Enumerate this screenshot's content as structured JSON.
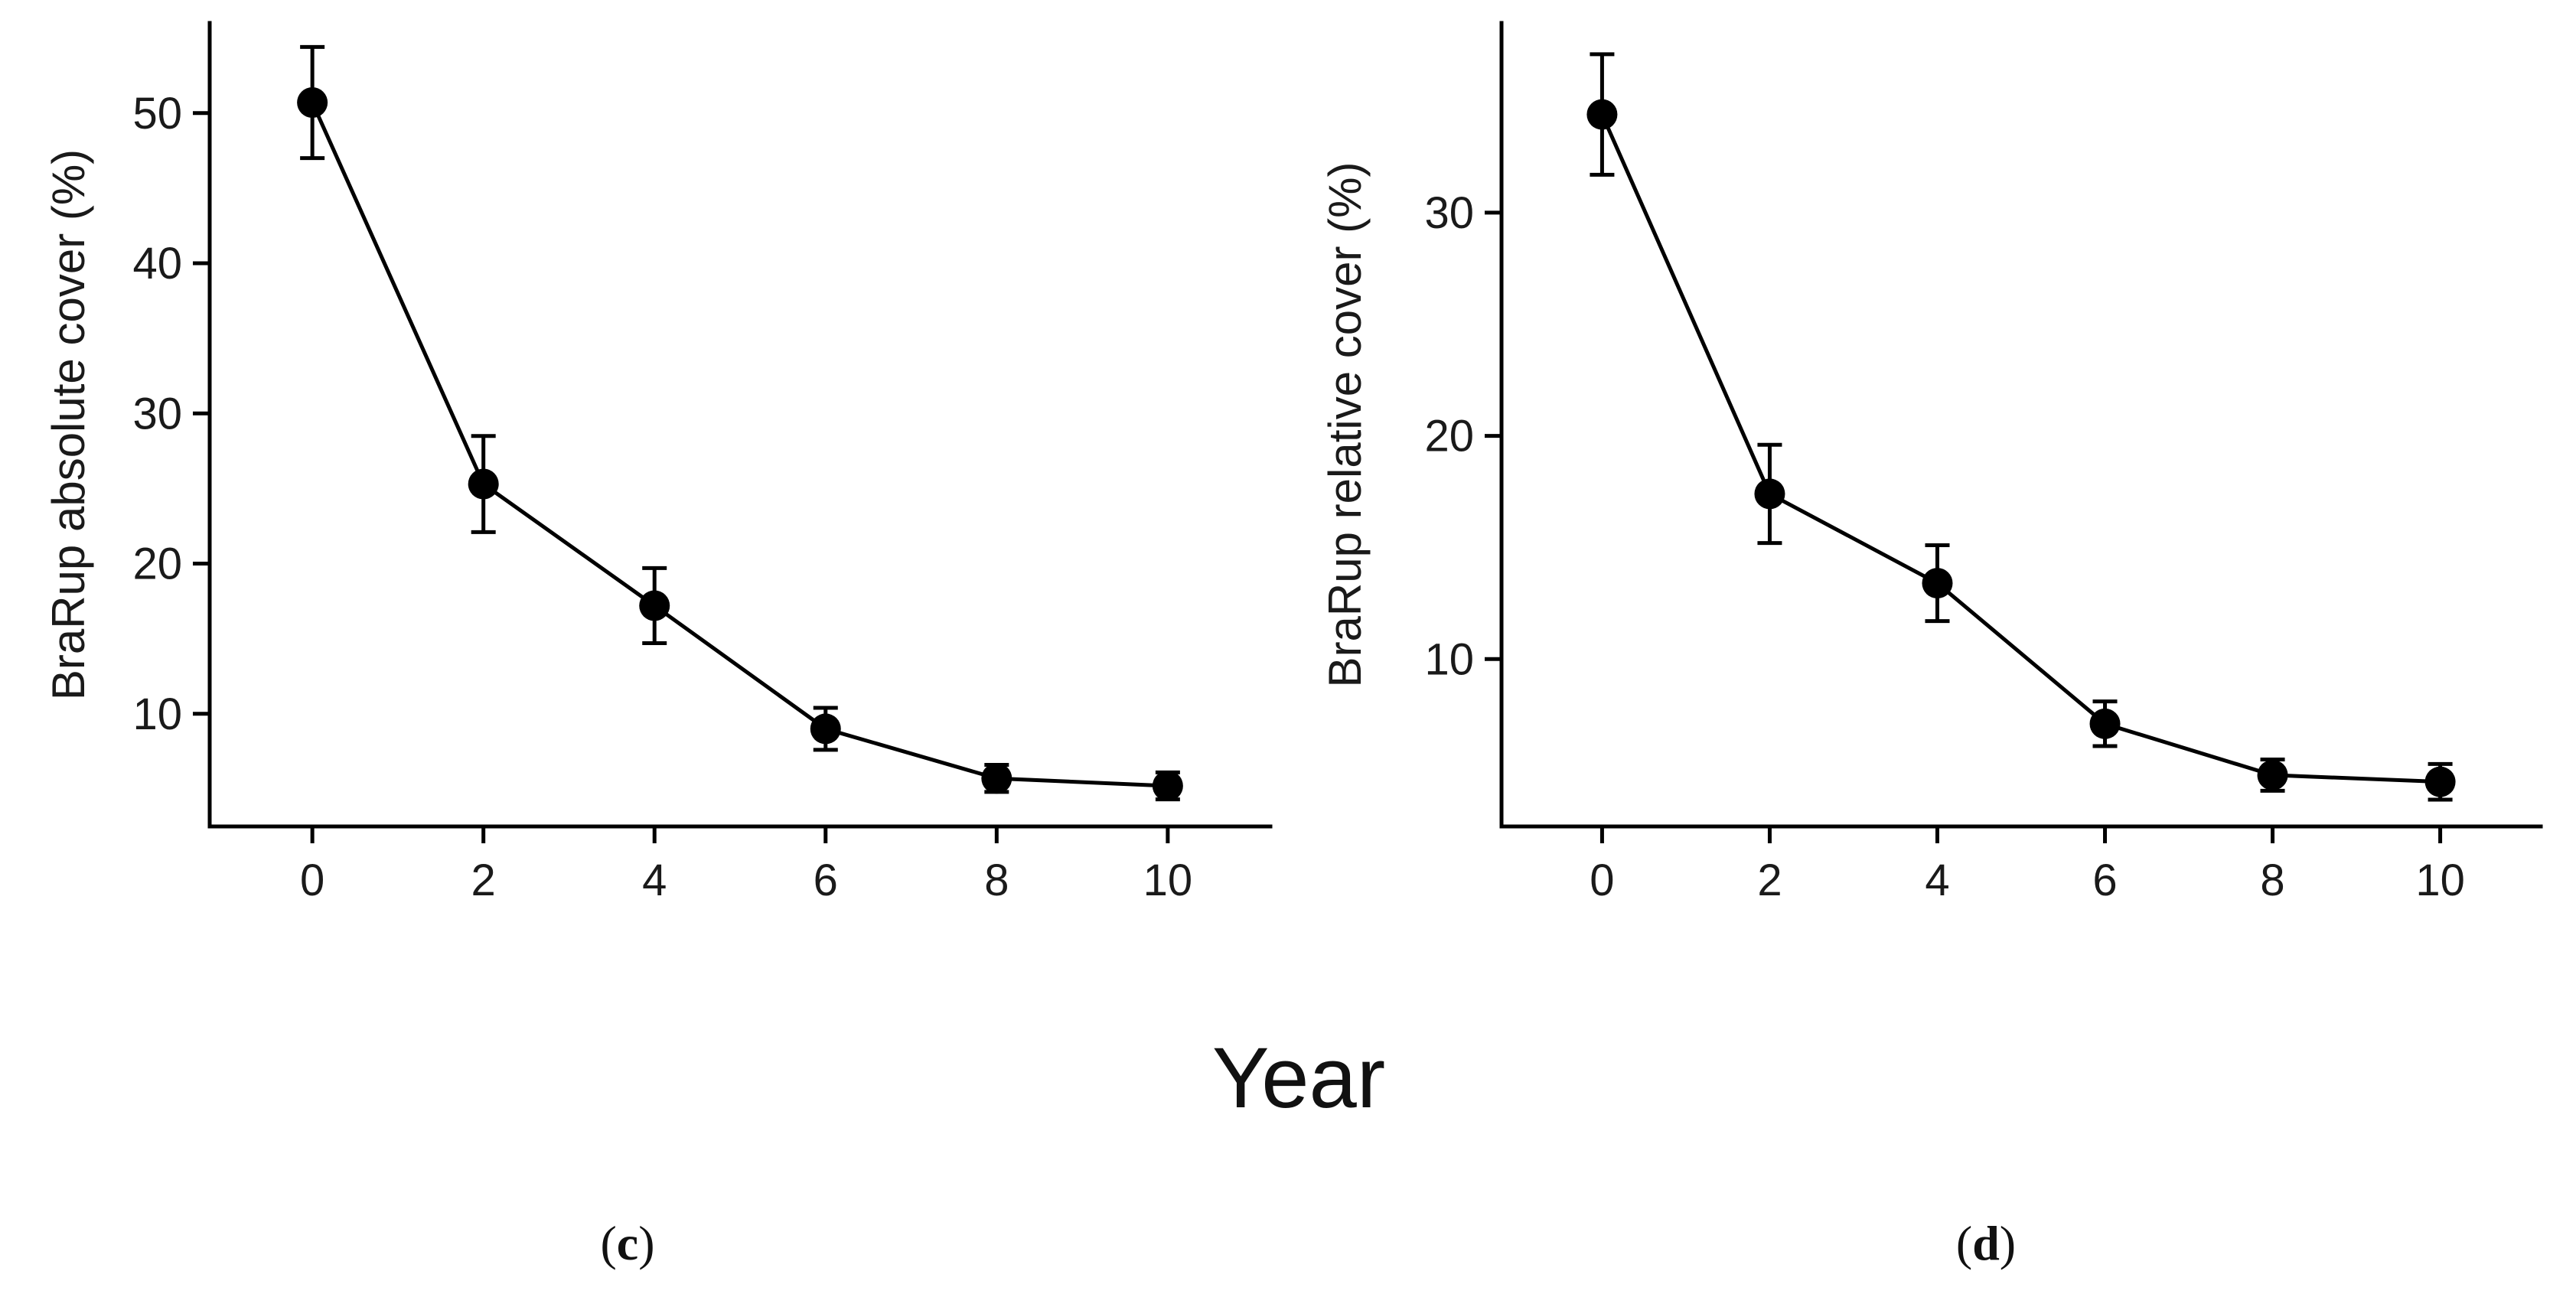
{
  "figure": {
    "shared_xlabel": "Year",
    "colors": {
      "ink": "#000000",
      "text": "#1a1a1a",
      "background": "#ffffff"
    }
  },
  "chart_data": [
    {
      "type": "line",
      "panel_label": {
        "open": "(",
        "letter": "c",
        "close": ")"
      },
      "title": "",
      "xlabel": "Year",
      "ylabel": "BraRup absolute cover (%)",
      "xlim": [
        -1.2,
        11.2
      ],
      "ylim": [
        2.5,
        56
      ],
      "xticks": [
        0,
        2,
        4,
        6,
        8,
        10
      ],
      "yticks": [
        10,
        20,
        30,
        40,
        50
      ],
      "grid": false,
      "series": [
        {
          "name": "absolute cover",
          "x": [
            0,
            2,
            4,
            6,
            8,
            10
          ],
          "y": [
            50.7,
            25.3,
            17.2,
            9.0,
            5.7,
            5.2
          ],
          "error": [
            3.7,
            3.2,
            2.5,
            1.4,
            0.9,
            0.9
          ]
        }
      ]
    },
    {
      "type": "line",
      "panel_label": {
        "open": "(",
        "letter": "d",
        "close": ")"
      },
      "title": "",
      "xlabel": "Year",
      "ylabel": "BraRup relative cover (%)",
      "xlim": [
        -1.2,
        11.2
      ],
      "ylim": [
        2.5,
        38.5
      ],
      "xticks": [
        0,
        2,
        4,
        6,
        8,
        10
      ],
      "yticks": [
        10,
        20,
        30
      ],
      "grid": false,
      "series": [
        {
          "name": "relative cover",
          "x": [
            0,
            2,
            4,
            6,
            8,
            10
          ],
          "y": [
            34.4,
            17.4,
            13.4,
            7.1,
            4.8,
            4.5
          ],
          "error": [
            2.7,
            2.2,
            1.7,
            1.0,
            0.7,
            0.8
          ]
        }
      ]
    }
  ]
}
